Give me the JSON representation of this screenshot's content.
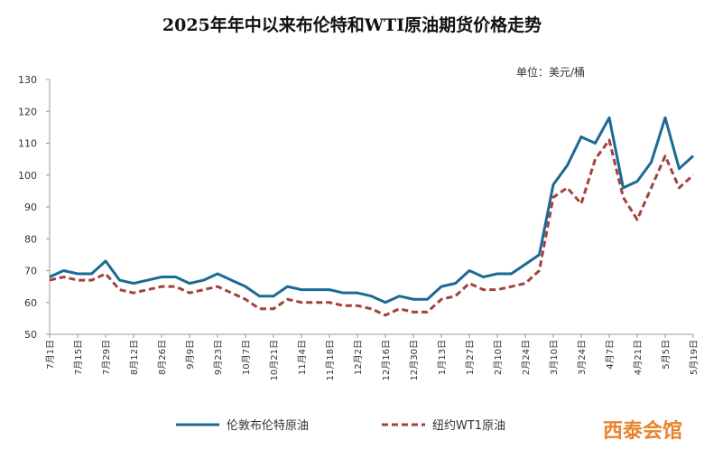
{
  "chart_data": {
    "type": "line",
    "title": "2025年年中以来布伦特和WTI原油期货价格走势",
    "unit_label": "单位：美元/桶",
    "watermark": "西泰会馆",
    "categories": [
      "7月1日",
      null,
      "7月15日",
      null,
      "7月29日",
      null,
      "8月12日",
      null,
      "8月26日",
      null,
      "9月9日",
      null,
      "9月23日",
      null,
      "10月7日",
      null,
      "10月21日",
      null,
      "11月4日",
      null,
      "11月18日",
      null,
      "12月2日",
      null,
      "12月16日",
      null,
      "12月30日",
      null,
      "1月13日",
      null,
      "1月27日",
      null,
      "2月10日",
      null,
      "2月24日",
      null,
      "3月10日",
      null,
      "3月24日",
      null,
      "4月7日",
      null,
      "4月21日",
      null,
      "5月5日",
      null,
      "5月19日"
    ],
    "series": [
      {
        "name": "伦敦布伦特原油",
        "color": "#1b6a96",
        "line_style": "solid",
        "values": [
          68,
          70,
          69,
          69,
          73,
          67,
          66,
          67,
          68,
          68,
          66,
          67,
          69,
          67,
          65,
          62,
          62,
          65,
          64,
          64,
          64,
          63,
          63,
          62,
          60,
          62,
          61,
          61,
          65,
          66,
          70,
          68,
          69,
          69,
          72,
          75,
          97,
          103,
          112,
          110,
          118,
          96,
          98,
          104,
          118,
          102,
          106
        ]
      },
      {
        "name": "纽约WT1原油",
        "color": "#a3423b",
        "line_style": "dashed",
        "values": [
          67,
          68,
          67,
          67,
          69,
          64,
          63,
          64,
          65,
          65,
          63,
          64,
          65,
          63,
          61,
          58,
          58,
          61,
          60,
          60,
          60,
          59,
          59,
          58,
          56,
          58,
          57,
          57,
          61,
          62,
          66,
          64,
          64,
          65,
          66,
          70,
          93,
          96,
          91,
          105,
          111,
          93,
          86,
          96,
          106,
          96,
          100
        ]
      }
    ],
    "ylim": [
      50,
      130
    ],
    "yticks": [
      50,
      60,
      70,
      80,
      90,
      100,
      110,
      120,
      130
    ],
    "legend": "bottom"
  }
}
